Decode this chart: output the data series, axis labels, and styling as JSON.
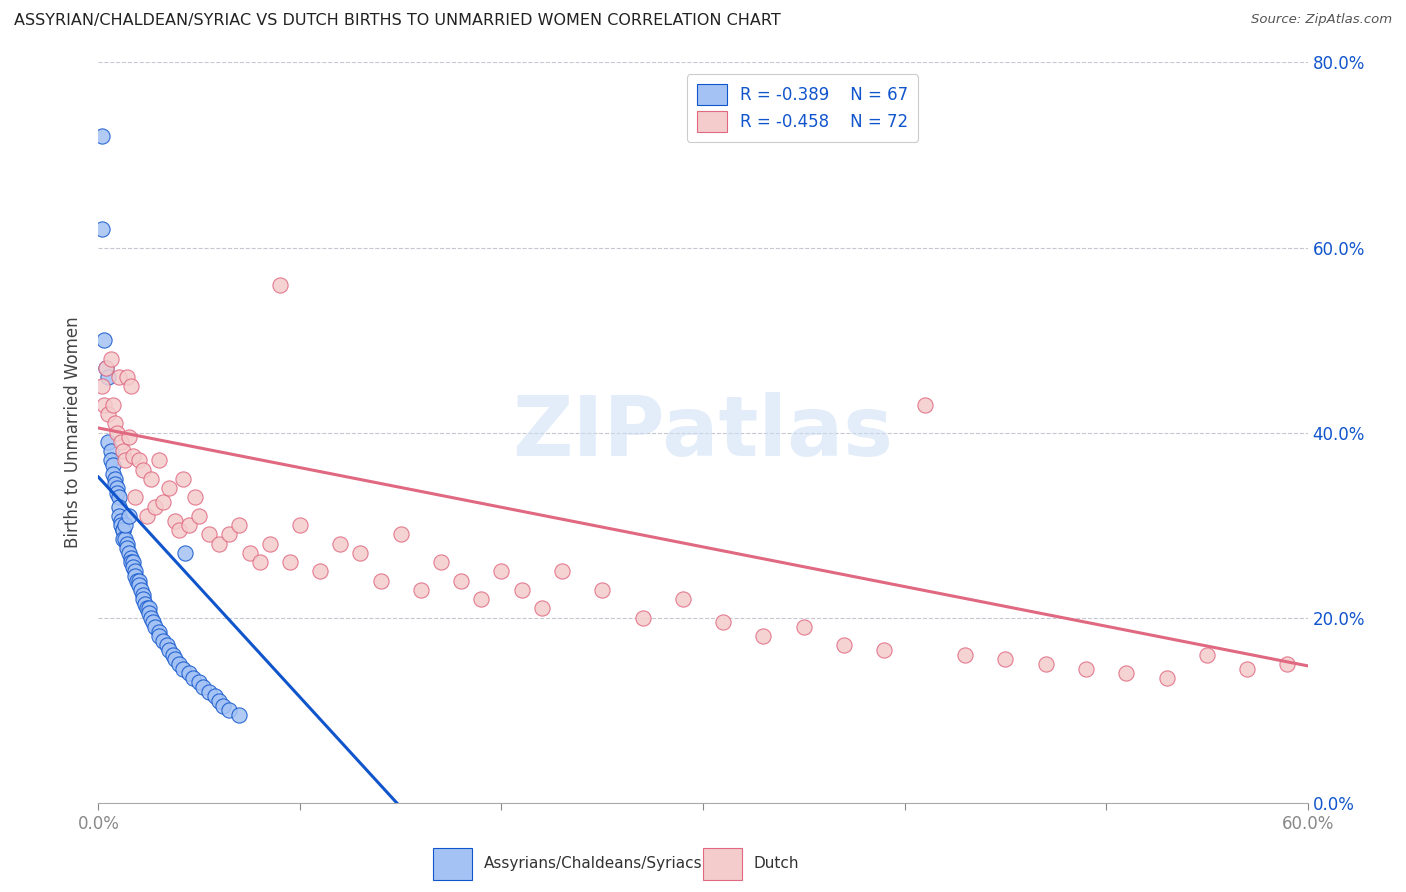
{
  "title": "ASSYRIAN/CHALDEAN/SYRIAC VS DUTCH BIRTHS TO UNMARRIED WOMEN CORRELATION CHART",
  "source": "Source: ZipAtlas.com",
  "ylabel": "Births to Unmarried Women",
  "legend_label1": "Assyrians/Chaldeans/Syriacs",
  "legend_label2": "Dutch",
  "legend_r1": "R = -0.389",
  "legend_n1": "N = 67",
  "legend_r2": "R = -0.458",
  "legend_n2": "N = 72",
  "color_blue": "#a4c2f4",
  "color_pink": "#f4cccc",
  "color_line_blue": "#1155cc",
  "color_line_pink": "#e06880",
  "color_text_blue": "#1155cc",
  "xlim": [
    0.0,
    0.6
  ],
  "ylim": [
    0.0,
    0.8
  ],
  "yticks": [
    0.0,
    0.2,
    0.4,
    0.6,
    0.8
  ],
  "blue_line_x": [
    0.0,
    0.148
  ],
  "blue_line_y": [
    0.352,
    0.0
  ],
  "pink_line_x": [
    0.0,
    0.6
  ],
  "pink_line_y": [
    0.405,
    0.148
  ],
  "blue_scatter_x": [
    0.002,
    0.002,
    0.003,
    0.004,
    0.005,
    0.005,
    0.006,
    0.006,
    0.007,
    0.007,
    0.008,
    0.008,
    0.009,
    0.009,
    0.01,
    0.01,
    0.01,
    0.011,
    0.011,
    0.012,
    0.012,
    0.012,
    0.013,
    0.013,
    0.014,
    0.014,
    0.015,
    0.015,
    0.016,
    0.016,
    0.017,
    0.017,
    0.018,
    0.018,
    0.019,
    0.02,
    0.02,
    0.021,
    0.022,
    0.022,
    0.023,
    0.024,
    0.025,
    0.025,
    0.026,
    0.027,
    0.028,
    0.03,
    0.03,
    0.032,
    0.034,
    0.035,
    0.037,
    0.038,
    0.04,
    0.042,
    0.043,
    0.045,
    0.047,
    0.05,
    0.052,
    0.055,
    0.058,
    0.06,
    0.062,
    0.065,
    0.07
  ],
  "blue_scatter_y": [
    0.72,
    0.62,
    0.5,
    0.47,
    0.46,
    0.39,
    0.38,
    0.37,
    0.365,
    0.355,
    0.35,
    0.345,
    0.34,
    0.335,
    0.33,
    0.32,
    0.31,
    0.305,
    0.3,
    0.295,
    0.295,
    0.285,
    0.285,
    0.3,
    0.28,
    0.275,
    0.31,
    0.27,
    0.265,
    0.26,
    0.26,
    0.255,
    0.25,
    0.245,
    0.24,
    0.24,
    0.235,
    0.23,
    0.225,
    0.22,
    0.215,
    0.21,
    0.21,
    0.205,
    0.2,
    0.195,
    0.19,
    0.185,
    0.18,
    0.175,
    0.17,
    0.165,
    0.16,
    0.155,
    0.15,
    0.145,
    0.27,
    0.14,
    0.135,
    0.13,
    0.125,
    0.12,
    0.115,
    0.11,
    0.105,
    0.1,
    0.095
  ],
  "pink_scatter_x": [
    0.002,
    0.003,
    0.004,
    0.005,
    0.006,
    0.007,
    0.008,
    0.009,
    0.01,
    0.011,
    0.012,
    0.013,
    0.014,
    0.015,
    0.016,
    0.017,
    0.018,
    0.02,
    0.022,
    0.024,
    0.026,
    0.028,
    0.03,
    0.032,
    0.035,
    0.038,
    0.04,
    0.042,
    0.045,
    0.048,
    0.05,
    0.055,
    0.06,
    0.065,
    0.07,
    0.075,
    0.08,
    0.085,
    0.09,
    0.095,
    0.1,
    0.11,
    0.12,
    0.13,
    0.14,
    0.15,
    0.16,
    0.17,
    0.18,
    0.19,
    0.2,
    0.21,
    0.22,
    0.23,
    0.25,
    0.27,
    0.29,
    0.31,
    0.33,
    0.35,
    0.37,
    0.39,
    0.41,
    0.43,
    0.45,
    0.47,
    0.49,
    0.51,
    0.53,
    0.55,
    0.57,
    0.59
  ],
  "pink_scatter_y": [
    0.45,
    0.43,
    0.47,
    0.42,
    0.48,
    0.43,
    0.41,
    0.4,
    0.46,
    0.39,
    0.38,
    0.37,
    0.46,
    0.395,
    0.45,
    0.375,
    0.33,
    0.37,
    0.36,
    0.31,
    0.35,
    0.32,
    0.37,
    0.325,
    0.34,
    0.305,
    0.295,
    0.35,
    0.3,
    0.33,
    0.31,
    0.29,
    0.28,
    0.29,
    0.3,
    0.27,
    0.26,
    0.28,
    0.56,
    0.26,
    0.3,
    0.25,
    0.28,
    0.27,
    0.24,
    0.29,
    0.23,
    0.26,
    0.24,
    0.22,
    0.25,
    0.23,
    0.21,
    0.25,
    0.23,
    0.2,
    0.22,
    0.195,
    0.18,
    0.19,
    0.17,
    0.165,
    0.43,
    0.16,
    0.155,
    0.15,
    0.145,
    0.14,
    0.135,
    0.16,
    0.145,
    0.15
  ]
}
